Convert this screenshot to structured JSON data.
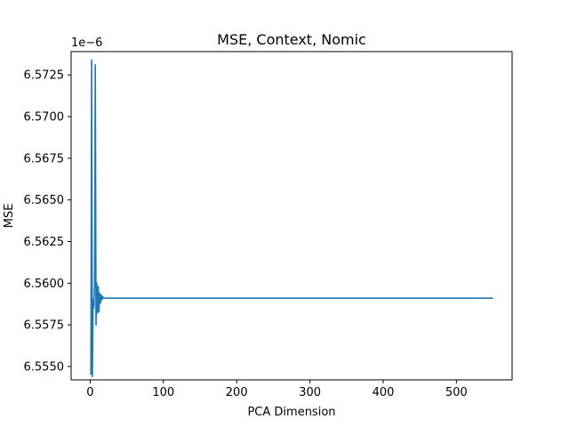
{
  "chart_data": {
    "type": "line",
    "title": "MSE, Context, Nomic",
    "xlabel": "PCA Dimension",
    "ylabel": "MSE",
    "y_offset_text": "1e−6",
    "xlim": [
      -26,
      576
    ],
    "ylim": [
      6.5542,
      6.5739
    ],
    "xticks": [
      0,
      100,
      200,
      300,
      400,
      500
    ],
    "xtick_labels": [
      "0",
      "100",
      "200",
      "300",
      "400",
      "500"
    ],
    "yticks": [
      6.555,
      6.5575,
      6.56,
      6.5625,
      6.565,
      6.5675,
      6.57,
      6.5725
    ],
    "ytick_labels": [
      "6.5550",
      "6.5575",
      "6.5600",
      "6.5625",
      "6.5650",
      "6.5675",
      "6.5700",
      "6.5725"
    ],
    "grid": false,
    "series": [
      {
        "color": "#1f77b4",
        "x": [
          1,
          2,
          3,
          4,
          5,
          6,
          7,
          8,
          9,
          10,
          11,
          12,
          13,
          14,
          15,
          16,
          17,
          18,
          19,
          20,
          550
        ],
        "y": [
          6.5545,
          6.5734,
          6.5544,
          6.559,
          6.5585,
          6.5599,
          6.5731,
          6.5575,
          6.56,
          6.5582,
          6.5598,
          6.5583,
          6.5594,
          6.5588,
          6.5593,
          6.559,
          6.5592,
          6.5591,
          6.5591,
          6.5591,
          6.5591
        ]
      }
    ]
  }
}
